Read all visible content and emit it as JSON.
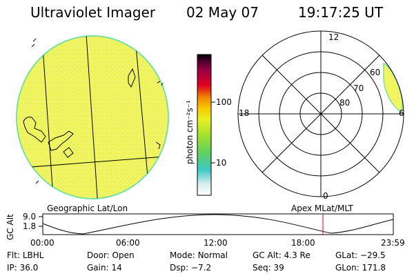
{
  "header": {
    "instrument": "Ultraviolet Imager",
    "date": "02 May 07",
    "time": "19:17:25 UT"
  },
  "colorbar": {
    "unit_label": "photon cm⁻²s⁻¹",
    "ticks": [
      {
        "label": "100",
        "value": 100
      },
      {
        "label": "10",
        "value": 10
      }
    ],
    "scale": "log"
  },
  "polar": {
    "mlt_labels": [
      "12",
      "18",
      "6",
      "0"
    ],
    "lat_labels": [
      "60",
      "70",
      "80"
    ]
  },
  "panels": {
    "left_caption": "Geographic Lat/Lon",
    "right_caption": "Apex MLat/MLT"
  },
  "timeline": {
    "axis_title": "GC Alt",
    "y_ticks": [
      "9.0",
      "1.8"
    ],
    "x_ticks": [
      "00:00",
      "06:00",
      "12:00",
      "18:00",
      "23:59"
    ],
    "marker_time": "19:17",
    "colors": {
      "curve": "#000000",
      "marker": "#dd0000"
    }
  },
  "footer": {
    "row1": [
      {
        "key": "Flt:",
        "value": "LBHL"
      },
      {
        "key": "Door:",
        "value": "Open"
      },
      {
        "key": "Mode:",
        "value": "Normal"
      },
      {
        "key": "GC Alt:",
        "value": "4.3 Re"
      },
      {
        "key": "GLat:",
        "value": "−29.5"
      }
    ],
    "row2": [
      {
        "key": "IP:",
        "value": "36.0"
      },
      {
        "key": "Gain:",
        "value": "14"
      },
      {
        "key": "Dsp:",
        "value": "−7.2"
      },
      {
        "key": "Seq:",
        "value": "39"
      },
      {
        "key": "GLon:",
        "value": "171.8"
      }
    ]
  },
  "colors": {
    "image_fill": "#f0f560",
    "limb": "#78e0a0",
    "colorbar": [
      "#ffffff",
      "#d8eef0",
      "#40c8c8",
      "#60d060",
      "#a0e030",
      "#e8f020",
      "#f8c800",
      "#f08000",
      "#e00020",
      "#a00040",
      "#500030",
      "#000000"
    ]
  }
}
